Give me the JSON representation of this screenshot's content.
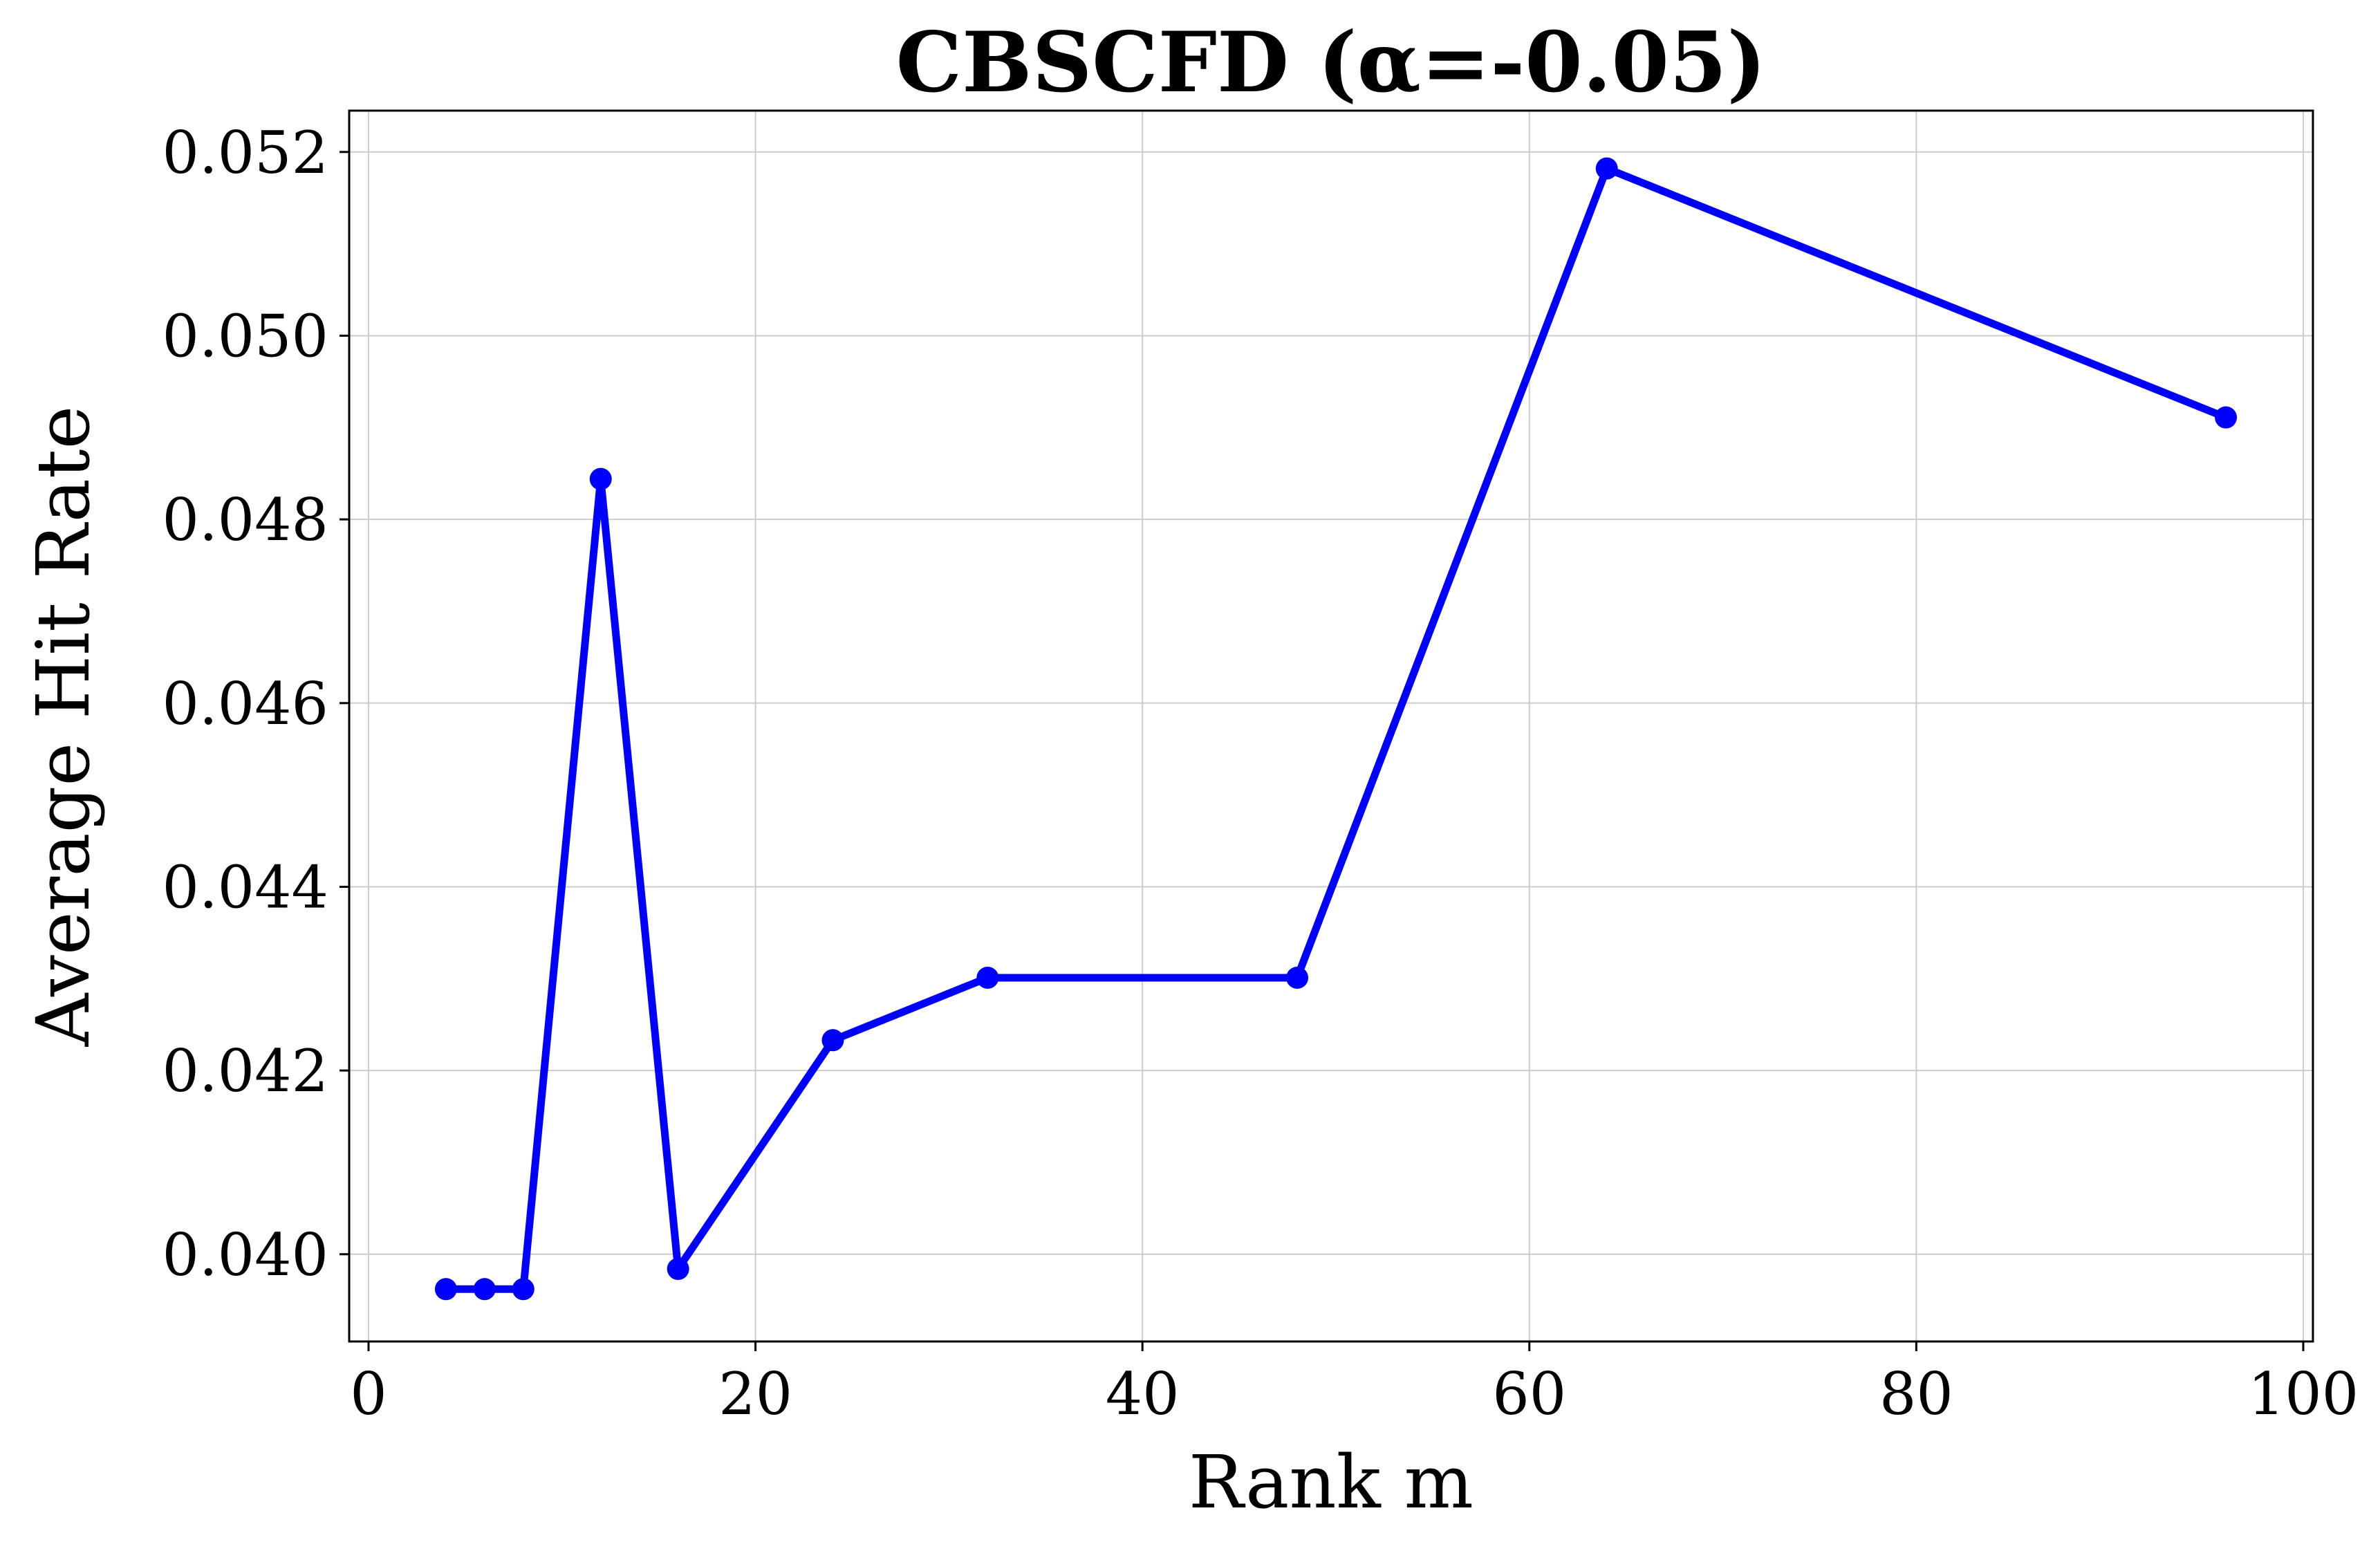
{
  "chart_data": {
    "type": "line",
    "title": "CBSCFD (α=-0.05)",
    "xlabel": "Rank m",
    "ylabel": "Average Hit Rate",
    "xlim": [
      -1,
      100.5
    ],
    "ylim": [
      0.03905,
      0.05245
    ],
    "xticks": [
      0,
      20,
      40,
      60,
      80,
      100
    ],
    "xtick_labels": [
      "0",
      "20",
      "40",
      "60",
      "80",
      "100"
    ],
    "yticks": [
      0.04,
      0.042,
      0.044,
      0.046,
      0.048,
      0.05,
      0.052
    ],
    "ytick_labels": [
      "0.040",
      "0.042",
      "0.044",
      "0.046",
      "0.048",
      "0.050",
      "0.052"
    ],
    "grid": true,
    "legend": "none",
    "series": [
      {
        "color": "#0000ff",
        "marker": "circle",
        "x": [
          4,
          6,
          8,
          12,
          16,
          24,
          32,
          48,
          64,
          96
        ],
        "y": [
          0.03962,
          0.03962,
          0.03962,
          0.04844,
          0.03984,
          0.04233,
          0.04301,
          0.04301,
          0.05182,
          0.04911
        ]
      }
    ]
  }
}
